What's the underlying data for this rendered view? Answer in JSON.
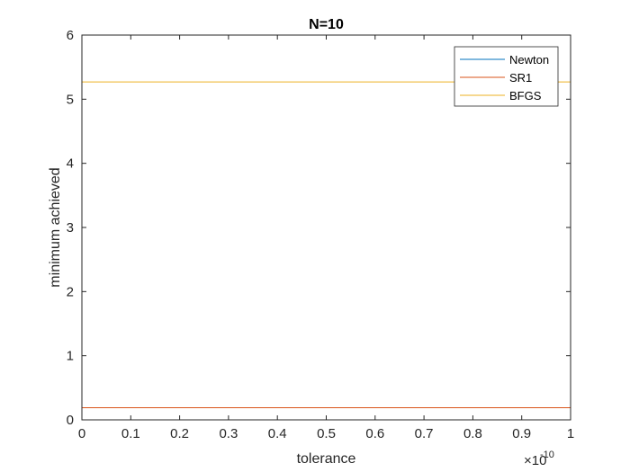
{
  "chart_data": {
    "type": "line",
    "title": "N=10",
    "xlabel": "tolerance",
    "ylabel": "minimum achieved",
    "x_exponent_label": "×10",
    "x_exponent_power": "-10",
    "xlim": [
      0,
      1
    ],
    "ylim": [
      0,
      6
    ],
    "xticks": [
      "0",
      "0.1",
      "0.2",
      "0.3",
      "0.4",
      "0.5",
      "0.6",
      "0.7",
      "0.8",
      "0.9",
      "1"
    ],
    "yticks": [
      "0",
      "1",
      "2",
      "3",
      "4",
      "5",
      "6"
    ],
    "grid": false,
    "legend_position": "top-right",
    "series": [
      {
        "name": "Newton",
        "color": "#0072BD",
        "x": [
          0,
          1
        ],
        "y": [
          0.0,
          0.0
        ]
      },
      {
        "name": "SR1",
        "color": "#D95319",
        "x": [
          0,
          1
        ],
        "y": [
          0.19,
          0.19
        ]
      },
      {
        "name": "BFGS",
        "color": "#EDB120",
        "x": [
          0,
          1
        ],
        "y": [
          5.27,
          5.27
        ]
      }
    ]
  }
}
